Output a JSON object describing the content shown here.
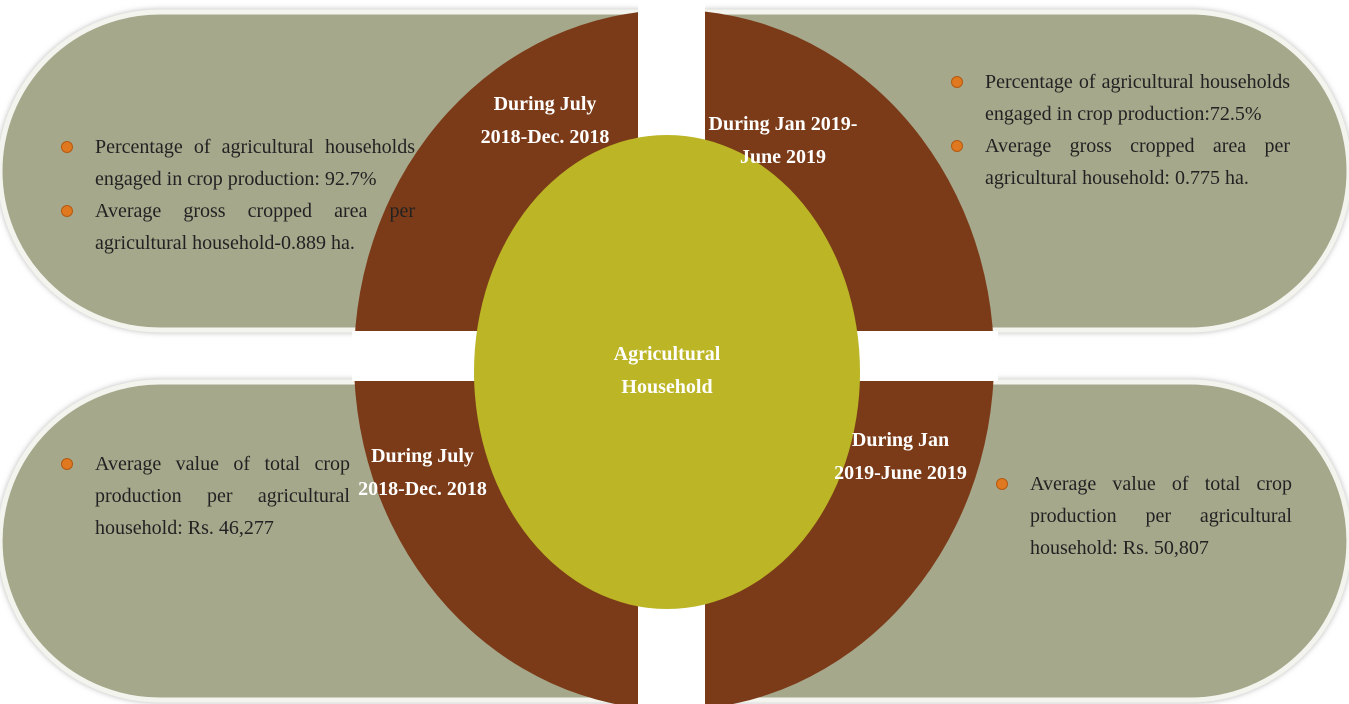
{
  "center_label": "Agricultural Household",
  "quadrants": [
    {
      "period": "During July 2018-Dec. 2018",
      "items": [
        "Percentage of agricultural households engaged in crop production: 92.7%",
        "Average gross cropped area per agricultural household-0.889 ha."
      ]
    },
    {
      "period": "During Jan 2019-June 2019",
      "items": [
        "Percentage of agricultural households engaged in crop production:72.5%",
        "Average gross cropped area per agricultural household: 0.775 ha."
      ]
    },
    {
      "period": "During July 2018-Dec. 2018",
      "items": [
        "Average value of total crop production per agricultural household: Rs. 46,277"
      ]
    },
    {
      "period": "During Jan 2019-June 2019",
      "items": [
        "Average value of total crop production per agricultural household: Rs. 50,807"
      ]
    }
  ]
}
